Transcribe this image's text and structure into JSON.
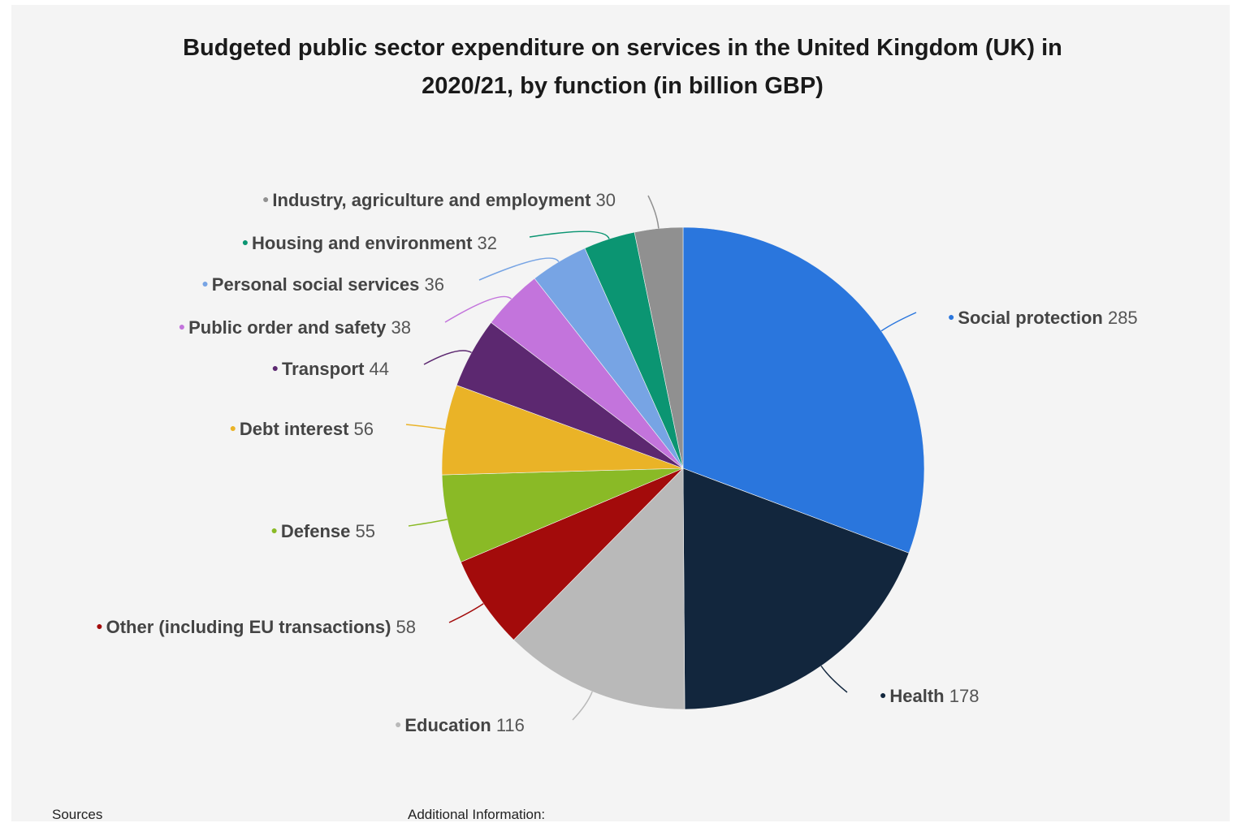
{
  "chart_data": {
    "type": "pie",
    "title": "Budgeted public sector expenditure on services in the United Kingdom (UK) in 2020/21, by function (in billion GBP)",
    "title_lines": [
      "Budgeted public sector expenditure on services in the United Kingdom (UK) in",
      "2020/21, by function (in billion GBP)"
    ],
    "slices": [
      {
        "label": "Social protection",
        "value": 285,
        "color": "#2a76dd"
      },
      {
        "label": "Health",
        "value": 178,
        "color": "#12263d"
      },
      {
        "label": "Education",
        "value": 116,
        "color": "#b9b9b9"
      },
      {
        "label": "Other (including EU transactions)",
        "value": 58,
        "color": "#a30b0b"
      },
      {
        "label": "Defense",
        "value": 55,
        "color": "#8aba26"
      },
      {
        "label": "Debt interest",
        "value": 56,
        "color": "#eab327"
      },
      {
        "label": "Transport",
        "value": 44,
        "color": "#5c2870"
      },
      {
        "label": "Public order and safety",
        "value": 38,
        "color": "#c374dc"
      },
      {
        "label": "Personal social services",
        "value": 36,
        "color": "#77a4e4"
      },
      {
        "label": "Housing and environment",
        "value": 32,
        "color": "#0b9572"
      },
      {
        "label": "Industry, agriculture and employment",
        "value": 30,
        "color": "#909090"
      }
    ],
    "legend": "none",
    "label_placement": "outside with leader lines"
  },
  "footer": {
    "sources": "Sources",
    "additional": "Additional Information:"
  }
}
